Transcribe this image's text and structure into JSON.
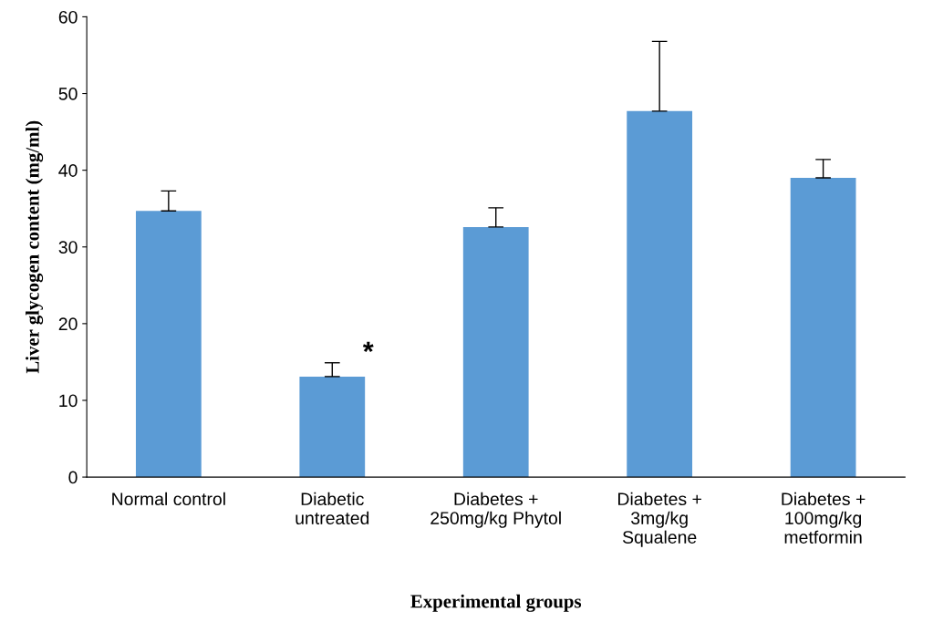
{
  "chart_data": {
    "type": "bar",
    "xlabel": "Experimental groups",
    "ylabel": "Liver glycogen content (mg/ml)",
    "categories": [
      "Normal control",
      "Diabetic\nuntreated",
      "Diabetes +\n250mg/kg Phytol",
      "Diabetes +\n3mg/kg\nSqualene",
      "Diabetes +\n100mg/kg\nmetformin"
    ],
    "values": [
      34.7,
      13.1,
      32.6,
      47.7,
      39.0
    ],
    "errors": [
      [
        34.7,
        37.3
      ],
      [
        13.1,
        14.9
      ],
      [
        32.6,
        35.1
      ],
      [
        47.7,
        56.8
      ],
      [
        39.0,
        41.4
      ]
    ],
    "color": "#5b9bd5",
    "ylim": [
      0,
      60
    ],
    "yticks": [
      0,
      10,
      20,
      30,
      40,
      50,
      60
    ],
    "grid": false,
    "legend": false,
    "annotations": [
      "*"
    ]
  }
}
